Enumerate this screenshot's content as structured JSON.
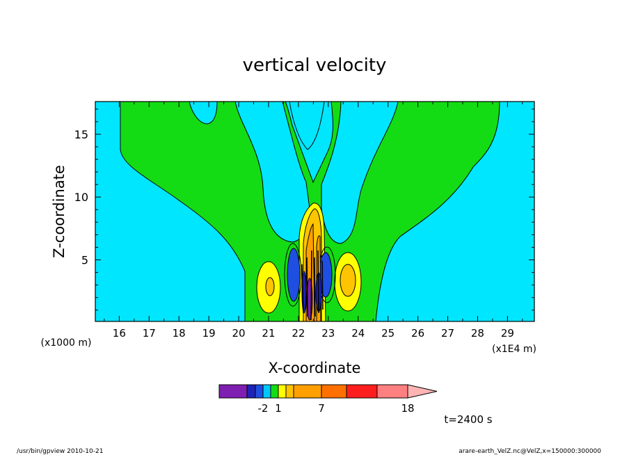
{
  "chart_data": {
    "type": "heatmap",
    "title": "vertical velocity",
    "xlabel": "X-coordinate",
    "ylabel": "Z-coordinate",
    "x_unit_left": "(x1000 m)",
    "x_unit_right": "(x1E4 m)",
    "x_ticks": [
      "16",
      "17",
      "18",
      "19",
      "20",
      "21",
      "22",
      "23",
      "24",
      "25",
      "26",
      "27",
      "28",
      "29"
    ],
    "y_ticks": [
      "5",
      "10",
      "15"
    ],
    "xlim": [
      15.2,
      29.9
    ],
    "ylim": [
      0.1,
      17.6
    ],
    "colorbar": {
      "colors": [
        "#7f1fb2",
        "#1e23b8",
        "#1f4fe0",
        "#00c8ff",
        "#14dc14",
        "#ffff00",
        "#ffc400",
        "#ffa000",
        "#ff7000",
        "#ff1e1e",
        "#ff8080",
        "#ffb4b4"
      ],
      "labels": [
        {
          "index": 3,
          "text": "-2"
        },
        {
          "index": 5,
          "text": "1"
        },
        {
          "index": 8,
          "text": "7"
        },
        {
          "index": 11,
          "text": "18"
        }
      ]
    },
    "time_label": "t=2400 s",
    "footer_left": "/usr/bin/gpview   2010-10-21",
    "footer_right": "arare-earth_VelZ.nc@VelZ,x=150000:300000"
  }
}
